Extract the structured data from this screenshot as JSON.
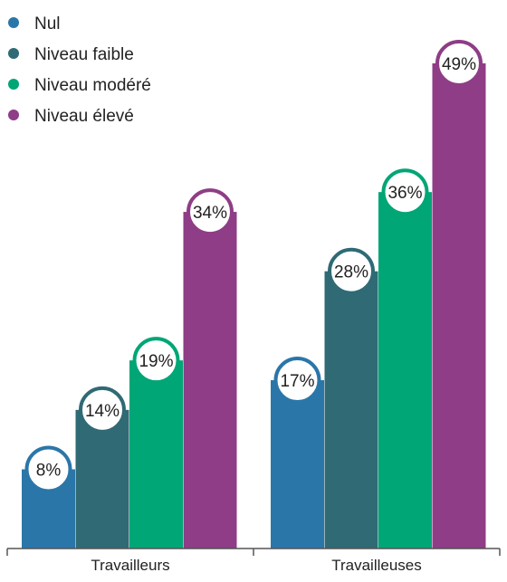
{
  "chart_data": {
    "type": "bar",
    "categories": [
      "Travailleurs",
      "Travailleuses"
    ],
    "series": [
      {
        "name": "Nul",
        "color": "#2b76a9",
        "values": [
          8,
          17
        ]
      },
      {
        "name": "Niveau faible",
        "color": "#2f6a75",
        "values": [
          14,
          28
        ]
      },
      {
        "name": "Niveau modéré",
        "color": "#00a676",
        "values": [
          19,
          36
        ]
      },
      {
        "name": "Niveau élevé",
        "color": "#8e3d86",
        "values": [
          34,
          49
        ]
      }
    ],
    "value_suffix": "%",
    "legend_position": "top-left",
    "grid": false,
    "ylim": [
      0,
      49
    ]
  }
}
